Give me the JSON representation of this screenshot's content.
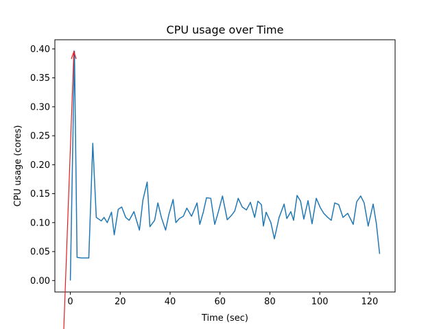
{
  "chart_data": {
    "type": "line",
    "title": "CPU usage over Time",
    "xlabel": "Time (sec)",
    "ylabel": "CPU usage (cores)",
    "series": [
      {
        "name": "CPU usage",
        "color": "#1f77b4",
        "x": [
          0,
          1.65,
          2.7,
          4.4,
          6,
          7.4,
          9,
          10.4,
          12.4,
          13.5,
          14.8,
          16.5,
          17.6,
          19.2,
          20.6,
          22.2,
          23.6,
          25.5,
          27.7,
          29.1,
          30.8,
          31.9,
          33.8,
          35.1,
          36.5,
          38.2,
          39.5,
          41.2,
          42.3,
          43.7,
          45.3,
          46.7,
          48.6,
          50.8,
          51.9,
          53.3,
          54.6,
          56.3,
          57.9,
          59.3,
          61,
          62.9,
          64.5,
          65.9,
          67.3,
          68.9,
          70.6,
          72.2,
          73.9,
          75.2,
          76.6,
          77.4,
          78.5,
          80.4,
          81.8,
          83.7,
          85.7,
          86.8,
          88.4,
          89.5,
          90.9,
          92.3,
          93.6,
          95.3,
          96.9,
          98.6,
          100.2,
          101.6,
          103.2,
          104.6,
          106,
          107.6,
          109.3,
          111.2,
          113.4,
          114.8,
          116.4,
          117.8,
          119.4,
          121.4,
          122.7,
          124
        ],
        "values": [
          0,
          0.396,
          0.04,
          0.039,
          0.039,
          0.039,
          0.237,
          0.109,
          0.103,
          0.109,
          0.1,
          0.118,
          0.079,
          0.123,
          0.127,
          0.109,
          0.104,
          0.119,
          0.087,
          0.139,
          0.17,
          0.093,
          0.104,
          0.134,
          0.109,
          0.087,
          0.114,
          0.14,
          0.1,
          0.107,
          0.111,
          0.125,
          0.111,
          0.134,
          0.097,
          0.118,
          0.143,
          0.142,
          0.097,
          0.118,
          0.146,
          0.105,
          0.112,
          0.12,
          0.142,
          0.127,
          0.122,
          0.135,
          0.109,
          0.137,
          0.131,
          0.094,
          0.118,
          0.1,
          0.072,
          0.109,
          0.132,
          0.107,
          0.119,
          0.104,
          0.147,
          0.137,
          0.106,
          0.138,
          0.098,
          0.142,
          0.126,
          0.116,
          0.109,
          0.104,
          0.134,
          0.131,
          0.109,
          0.116,
          0.097,
          0.136,
          0.146,
          0.134,
          0.094,
          0.132,
          0.098,
          0.046
        ]
      }
    ],
    "xlim": [
      -6.2,
      130.2
    ],
    "xticks": [
      0,
      20,
      40,
      60,
      80,
      100,
      120
    ],
    "ylim": [
      -0.0198,
      0.4158
    ],
    "yticks": [
      {
        "value": 0,
        "label": "0.00"
      },
      {
        "value": 0.05,
        "label": "0.05"
      },
      {
        "value": 0.1,
        "label": "0.10"
      },
      {
        "value": 0.15,
        "label": "0.15"
      },
      {
        "value": 0.2,
        "label": "0.20"
      },
      {
        "value": 0.25,
        "label": "0.25"
      },
      {
        "value": 0.3,
        "label": "0.30"
      },
      {
        "value": 0.35,
        "label": "0.35"
      },
      {
        "value": 0.4,
        "label": "0.40"
      }
    ]
  }
}
